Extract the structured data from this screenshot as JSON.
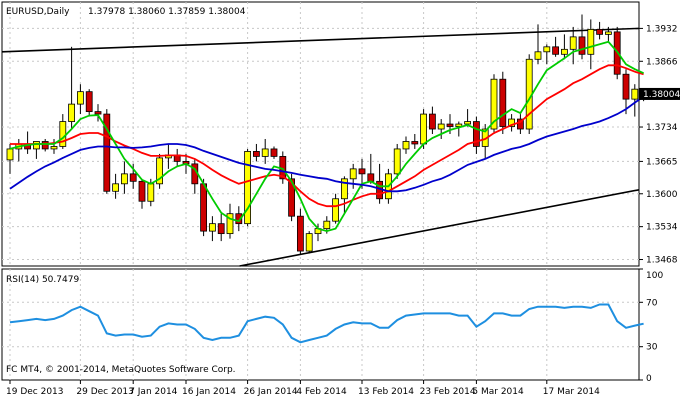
{
  "header": {
    "symbol_label": "EURUSD,Daily",
    "ohlc_label": "1.37978 1.38060 1.37859 1.38004",
    "indicator_label": "RSI(14) 50.7479",
    "copyright_label": "FC MT4, © 2001-2014, MetaQuotes Software Corp."
  },
  "chart_data": {
    "type": "candlestick",
    "symbol": "EURUSD",
    "timeframe": "Daily",
    "price_axis": {
      "ylim": [
        1.3455,
        1.3985
      ],
      "tick_labels": [
        "1.3932",
        "1.3866",
        "1.3800",
        "1.3734",
        "1.3665",
        "1.3600",
        "1.3534",
        "1.3468"
      ],
      "tick_values": [
        1.3932,
        1.3866,
        1.38004,
        1.3734,
        1.3665,
        1.36,
        1.3534,
        1.3468
      ],
      "current_price": 1.38004,
      "current_price_label": "1.38004"
    },
    "date_labels": [
      "19 Dec 2013",
      "29 Dec 2013",
      "7 Jan 2014",
      "16 Jan 2014",
      "26 Jan 2014",
      "4 Feb 2014",
      "13 Feb 2014",
      "23 Feb 2014",
      "5 Mar 2014",
      "17 Mar 2014"
    ],
    "date_label_index": [
      0,
      8,
      14,
      20,
      27,
      33,
      40,
      47,
      53,
      61
    ],
    "candles": [
      [
        1.3668,
        1.37,
        1.364,
        1.369
      ],
      [
        1.369,
        1.371,
        1.3665,
        1.37
      ],
      [
        1.37,
        1.3725,
        1.368,
        1.369
      ],
      [
        1.369,
        1.3705,
        1.367,
        1.3705
      ],
      [
        1.3705,
        1.371,
        1.3685,
        1.369
      ],
      [
        1.369,
        1.371,
        1.368,
        1.3695
      ],
      [
        1.3695,
        1.376,
        1.369,
        1.3745
      ],
      [
        1.3745,
        1.3895,
        1.373,
        1.378
      ],
      [
        1.378,
        1.382,
        1.376,
        1.3805
      ],
      [
        1.3805,
        1.381,
        1.3755,
        1.3765
      ],
      [
        1.3765,
        1.378,
        1.3745,
        1.376
      ],
      [
        1.376,
        1.377,
        1.36,
        1.3605
      ],
      [
        1.3605,
        1.364,
        1.359,
        1.362
      ],
      [
        1.362,
        1.3665,
        1.36,
        1.364
      ],
      [
        1.364,
        1.366,
        1.361,
        1.3625
      ],
      [
        1.3625,
        1.363,
        1.357,
        1.3585
      ],
      [
        1.3585,
        1.363,
        1.3575,
        1.362
      ],
      [
        1.362,
        1.368,
        1.361,
        1.3672
      ],
      [
        1.3672,
        1.37,
        1.365,
        1.3678
      ],
      [
        1.3678,
        1.369,
        1.3655,
        1.3665
      ],
      [
        1.3665,
        1.368,
        1.364,
        1.366
      ],
      [
        1.366,
        1.367,
        1.36,
        1.362
      ],
      [
        1.362,
        1.363,
        1.3515,
        1.3525
      ],
      [
        1.3525,
        1.3555,
        1.3505,
        1.354
      ],
      [
        1.354,
        1.356,
        1.3505,
        1.352
      ],
      [
        1.352,
        1.358,
        1.351,
        1.356
      ],
      [
        1.356,
        1.3575,
        1.3525,
        1.354
      ],
      [
        1.354,
        1.369,
        1.3535,
        1.3685
      ],
      [
        1.3685,
        1.37,
        1.3665,
        1.3675
      ],
      [
        1.3675,
        1.371,
        1.366,
        1.369
      ],
      [
        1.369,
        1.3695,
        1.367,
        1.3675
      ],
      [
        1.3675,
        1.3685,
        1.362,
        1.363
      ],
      [
        1.363,
        1.364,
        1.3545,
        1.3555
      ],
      [
        1.3555,
        1.357,
        1.3478,
        1.3485
      ],
      [
        1.3485,
        1.3525,
        1.348,
        1.352
      ],
      [
        1.352,
        1.354,
        1.3505,
        1.353
      ],
      [
        1.353,
        1.3555,
        1.352,
        1.3545
      ],
      [
        1.3545,
        1.36,
        1.354,
        1.359
      ],
      [
        1.359,
        1.3635,
        1.356,
        1.363
      ],
      [
        1.363,
        1.366,
        1.361,
        1.365
      ],
      [
        1.365,
        1.367,
        1.361,
        1.364
      ],
      [
        1.364,
        1.368,
        1.362,
        1.3625
      ],
      [
        1.3625,
        1.366,
        1.358,
        1.359
      ],
      [
        1.359,
        1.365,
        1.358,
        1.364
      ],
      [
        1.364,
        1.37,
        1.363,
        1.369
      ],
      [
        1.369,
        1.3715,
        1.368,
        1.3705
      ],
      [
        1.3705,
        1.372,
        1.369,
        1.37
      ],
      [
        1.37,
        1.377,
        1.369,
        1.376
      ],
      [
        1.376,
        1.3775,
        1.372,
        1.373
      ],
      [
        1.373,
        1.375,
        1.371,
        1.374
      ],
      [
        1.374,
        1.376,
        1.372,
        1.3735
      ],
      [
        1.3735,
        1.3745,
        1.3715,
        1.374
      ],
      [
        1.374,
        1.377,
        1.3735,
        1.3745
      ],
      [
        1.3745,
        1.3755,
        1.368,
        1.3695
      ],
      [
        1.3695,
        1.374,
        1.367,
        1.373
      ],
      [
        1.373,
        1.384,
        1.372,
        1.383
      ],
      [
        1.383,
        1.3845,
        1.372,
        1.3735
      ],
      [
        1.3735,
        1.376,
        1.3725,
        1.375
      ],
      [
        1.375,
        1.376,
        1.372,
        1.373
      ],
      [
        1.373,
        1.388,
        1.372,
        1.387
      ],
      [
        1.387,
        1.394,
        1.386,
        1.3885
      ],
      [
        1.3885,
        1.39,
        1.386,
        1.3895
      ],
      [
        1.3895,
        1.3915,
        1.3875,
        1.388
      ],
      [
        1.388,
        1.392,
        1.387,
        1.389
      ],
      [
        1.389,
        1.3935,
        1.386,
        1.3915
      ],
      [
        1.3915,
        1.396,
        1.387,
        1.388
      ],
      [
        1.388,
        1.395,
        1.385,
        1.393
      ],
      [
        1.393,
        1.3945,
        1.391,
        1.392
      ],
      [
        1.392,
        1.3935,
        1.3905,
        1.3925
      ],
      [
        1.3925,
        1.3935,
        1.383,
        1.384
      ],
      [
        1.384,
        1.385,
        1.376,
        1.379
      ],
      [
        1.379,
        1.382,
        1.3755,
        1.381
      ],
      [
        1.37978,
        1.3806,
        1.37859,
        1.38004
      ]
    ],
    "trendlines": [
      {
        "from": [
          0,
          1.3885
        ],
        "to": [
          72,
          1.3932
        ],
        "color": "#000000"
      },
      {
        "from": [
          27,
          1.3455
        ],
        "to": [
          72,
          1.3608
        ],
        "color": "#000000"
      }
    ],
    "moving_averages": [
      {
        "color": "#ff0000",
        "values": [
          1.37,
          1.37,
          1.37,
          1.37,
          1.37,
          1.3702,
          1.3705,
          1.3712,
          1.372,
          1.3722,
          1.3722,
          1.3715,
          1.3705,
          1.3697,
          1.369,
          1.3682,
          1.3676,
          1.3676,
          1.3677,
          1.3677,
          1.3676,
          1.367,
          1.366,
          1.3648,
          1.3637,
          1.3628,
          1.362,
          1.3625,
          1.363,
          1.3635,
          1.3638,
          1.3635,
          1.3622,
          1.3605,
          1.359,
          1.358,
          1.3575,
          1.3575,
          1.358,
          1.3588,
          1.3595,
          1.36,
          1.36,
          1.3605,
          1.3615,
          1.3625,
          1.3635,
          1.3648,
          1.3658,
          1.3668,
          1.3678,
          1.3688,
          1.37,
          1.3705,
          1.371,
          1.3722,
          1.373,
          1.3738,
          1.3744,
          1.376,
          1.3775,
          1.379,
          1.38,
          1.381,
          1.3822,
          1.383,
          1.384,
          1.385,
          1.3858,
          1.3858,
          1.3852,
          1.3845,
          1.384
        ]
      },
      {
        "color": "#00cc00",
        "values": [
          1.369,
          1.3695,
          1.3698,
          1.37,
          1.37,
          1.37,
          1.3712,
          1.373,
          1.375,
          1.3757,
          1.3758,
          1.373,
          1.37,
          1.367,
          1.365,
          1.3628,
          1.362,
          1.363,
          1.3645,
          1.3655,
          1.366,
          1.365,
          1.362,
          1.359,
          1.3562,
          1.355,
          1.3545,
          1.357,
          1.36,
          1.363,
          1.3655,
          1.365,
          1.3625,
          1.359,
          1.355,
          1.353,
          1.3525,
          1.353,
          1.356,
          1.359,
          1.362,
          1.3625,
          1.3615,
          1.3615,
          1.3635,
          1.366,
          1.368,
          1.37,
          1.3712,
          1.372,
          1.3728,
          1.3733,
          1.3738,
          1.373,
          1.3725,
          1.3745,
          1.3758,
          1.377,
          1.3762,
          1.379,
          1.382,
          1.3848,
          1.386,
          1.3872,
          1.3885,
          1.389,
          1.3895,
          1.39,
          1.3905,
          1.3885,
          1.386,
          1.385,
          1.3842
        ]
      },
      {
        "color": "#0000cc",
        "values": [
          1.361,
          1.3622,
          1.3634,
          1.3645,
          1.3655,
          1.3663,
          1.3672,
          1.368,
          1.3688,
          1.3692,
          1.3695,
          1.3695,
          1.3693,
          1.3693,
          1.3692,
          1.3693,
          1.3695,
          1.3698,
          1.37,
          1.37,
          1.3698,
          1.3693,
          1.3686,
          1.368,
          1.3674,
          1.3668,
          1.3662,
          1.3658,
          1.3654,
          1.365,
          1.3648,
          1.3645,
          1.3642,
          1.3638,
          1.3635,
          1.3632,
          1.363,
          1.3625,
          1.3622,
          1.362,
          1.3618,
          1.3615,
          1.361,
          1.3605,
          1.3605,
          1.3607,
          1.3612,
          1.3618,
          1.3625,
          1.363,
          1.3638,
          1.3648,
          1.3658,
          1.3664,
          1.367,
          1.3678,
          1.3684,
          1.369,
          1.3694,
          1.37,
          1.3708,
          1.3715,
          1.372,
          1.3725,
          1.373,
          1.3736,
          1.374,
          1.3745,
          1.3752,
          1.376,
          1.377,
          1.3783,
          1.3795
        ]
      }
    ],
    "rsi": {
      "name": "RSI(14)",
      "current_value": 50.7479,
      "ylim": [
        0,
        100
      ],
      "levels": [
        70,
        30
      ],
      "tick_labels": [
        "100",
        "70",
        "30",
        "0"
      ],
      "tick_values": [
        100,
        70,
        30,
        0
      ],
      "color": "#1e8fe0",
      "values": [
        52,
        53,
        54,
        55,
        54,
        55,
        58,
        63,
        66,
        62,
        58,
        42,
        40,
        41,
        41,
        39,
        40,
        48,
        51,
        50,
        50,
        46,
        38,
        36,
        38,
        38,
        40,
        53,
        55,
        57,
        56,
        50,
        38,
        34,
        36,
        38,
        40,
        46,
        50,
        52,
        51,
        51,
        47,
        47,
        54,
        58,
        59,
        60,
        60,
        60,
        60,
        58,
        58,
        48,
        53,
        60,
        60,
        58,
        58,
        64,
        66,
        66,
        66,
        65,
        66,
        66,
        65,
        68,
        68,
        53,
        47,
        49,
        50.7
      ]
    }
  },
  "colors": {
    "bull_candle": "#ffff00",
    "bear_candle": "#cc0000",
    "candle_outline": "#000000",
    "grid": "#c8c8c8",
    "price_tag_bg": "#000000",
    "price_tag_text": "#ffffff"
  }
}
